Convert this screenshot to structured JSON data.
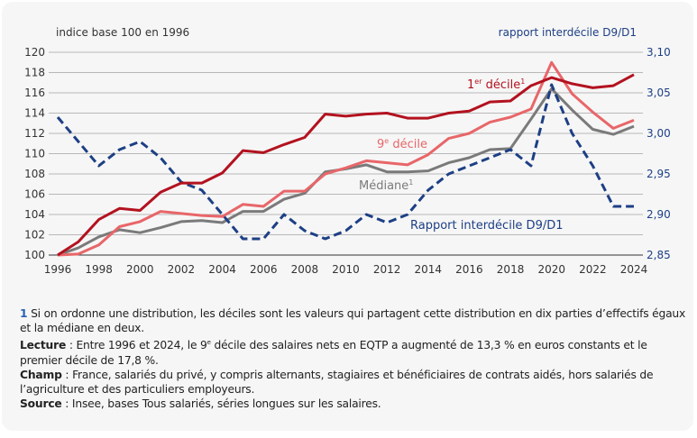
{
  "chart_data": {
    "type": "line",
    "left_axis_title": "indice base 100 en 1996",
    "right_axis_title": "rapport interdécile D9/D1",
    "x": [
      1996,
      1997,
      1998,
      1999,
      2000,
      2001,
      2002,
      2003,
      2004,
      2005,
      2006,
      2007,
      2008,
      2009,
      2010,
      2011,
      2012,
      2013,
      2014,
      2015,
      2016,
      2017,
      2018,
      2019,
      2020,
      2021,
      2022,
      2023,
      2024
    ],
    "x_ticks": [
      "1996",
      "1998",
      "2000",
      "2002",
      "2004",
      "2006",
      "2008",
      "2010",
      "2012",
      "2014",
      "2016",
      "2018",
      "2020",
      "2022",
      "2024"
    ],
    "y_left": {
      "range": [
        100,
        120
      ],
      "ticks": [
        "100",
        "102",
        "104",
        "106",
        "108",
        "110",
        "112",
        "114",
        "116",
        "118",
        "120"
      ]
    },
    "y_right": {
      "range": [
        2.85,
        3.1
      ],
      "ticks": [
        "2,85",
        "2,90",
        "2,95",
        "3,00",
        "3,05",
        "3,10"
      ]
    },
    "grid": true,
    "series": [
      {
        "name": "1er décile",
        "label_main": "1",
        "label_sup": "er",
        "label_rest": " décile",
        "label_note": "1",
        "axis": "left",
        "color": "#b3121f",
        "style": "solid",
        "values": [
          100,
          101.3,
          103.5,
          104.6,
          104.4,
          106.2,
          107.1,
          107.1,
          108.1,
          110.3,
          110.1,
          110.9,
          111.6,
          113.9,
          113.7,
          113.9,
          114.0,
          113.5,
          113.5,
          114.0,
          114.2,
          115.1,
          115.2,
          116.7,
          117.5,
          116.9,
          116.5,
          116.7,
          117.8
        ]
      },
      {
        "name": "9e décile",
        "label_main": "9",
        "label_sup": "e",
        "label_rest": " décile",
        "label_note": "",
        "axis": "left",
        "color": "#e86669",
        "style": "solid",
        "values": [
          100,
          100.1,
          101.0,
          102.8,
          103.3,
          104.3,
          104.1,
          103.9,
          103.8,
          105.0,
          104.8,
          106.3,
          106.3,
          108.0,
          108.6,
          109.3,
          109.1,
          108.9,
          109.9,
          111.5,
          112.0,
          113.1,
          113.6,
          114.4,
          119.0,
          115.9,
          114.1,
          112.5,
          113.3
        ]
      },
      {
        "name": "Médiane",
        "label_main": "Médiane",
        "label_sup": "",
        "label_rest": "",
        "label_note": "1",
        "axis": "left",
        "color": "#7a7a7a",
        "style": "solid",
        "values": [
          100,
          100.7,
          101.8,
          102.5,
          102.2,
          102.7,
          103.3,
          103.4,
          103.2,
          104.3,
          104.3,
          105.5,
          106.1,
          108.2,
          108.5,
          108.9,
          108.2,
          108.2,
          108.3,
          109.1,
          109.6,
          110.4,
          110.5,
          113.4,
          116.4,
          114.3,
          112.4,
          111.9,
          112.7
        ]
      },
      {
        "name": "Rapport interdécile D9/D1",
        "label_main": "Rapport interdécile D9/D1",
        "label_sup": "",
        "label_rest": "",
        "label_note": "",
        "axis": "right",
        "color": "#1d3f85",
        "style": "dashed",
        "values": [
          3.02,
          2.99,
          2.96,
          2.98,
          2.99,
          2.97,
          2.94,
          2.93,
          2.9,
          2.87,
          2.87,
          2.9,
          2.88,
          2.87,
          2.88,
          2.9,
          2.89,
          2.9,
          2.93,
          2.95,
          2.96,
          2.97,
          2.98,
          2.96,
          3.06,
          3.0,
          2.96,
          2.91,
          2.91
        ]
      }
    ]
  },
  "notes": {
    "n1_num": "1",
    "n1_text": " Si on ordonne une distribution, les déciles sont les valeurs qui partagent cette distribution en dix parties d’effectifs égaux et la médiane en deux.",
    "lecture_label": "Lecture",
    "lecture_a": " : Entre 1996 et 2024, le 9",
    "lecture_sup": "e",
    "lecture_b": " décile des salaires nets en EQTP a augmenté de 13,3 % en euros constants et le premier décile de 17,8 %.",
    "champ_label": "Champ",
    "champ_text": " : France, salariés du privé, y compris alternants, stagiaires et bénéficiaires de contrats aidés, hors salariés de l’agriculture et des particuliers employeurs.",
    "source_label": "Source",
    "source_text": " : Insee, bases Tous salariés, séries longues sur les salaires."
  }
}
